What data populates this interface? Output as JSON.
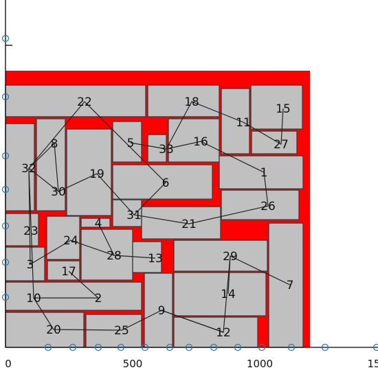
{
  "colors": {
    "region": "#ff0000",
    "box_fill": "#c0c0c0",
    "box_stroke": "#3a3a3a",
    "marker": "#1f77b4"
  },
  "axis": {
    "x_ticks": [
      "0",
      "500",
      "1000",
      "15"
    ]
  },
  "labels": [
    {
      "id": "1",
      "text": "1"
    },
    {
      "id": "2",
      "text": "2"
    },
    {
      "id": "3",
      "text": "3"
    },
    {
      "id": "4",
      "text": "4"
    },
    {
      "id": "5",
      "text": "5"
    },
    {
      "id": "6",
      "text": "6"
    },
    {
      "id": "7",
      "text": "7"
    },
    {
      "id": "8",
      "text": "8"
    },
    {
      "id": "9",
      "text": "9"
    },
    {
      "id": "10",
      "text": "10"
    },
    {
      "id": "11",
      "text": "11"
    },
    {
      "id": "12",
      "text": "12"
    },
    {
      "id": "13",
      "text": "13"
    },
    {
      "id": "14",
      "text": "14"
    },
    {
      "id": "15",
      "text": "15"
    },
    {
      "id": "16",
      "text": "16"
    },
    {
      "id": "17",
      "text": "17"
    },
    {
      "id": "18",
      "text": "18"
    },
    {
      "id": "19",
      "text": "19"
    },
    {
      "id": "20",
      "text": "20"
    },
    {
      "id": "21",
      "text": "21"
    },
    {
      "id": "22",
      "text": "22"
    },
    {
      "id": "23",
      "text": "23"
    },
    {
      "id": "24",
      "text": "24"
    },
    {
      "id": "25",
      "text": "25"
    },
    {
      "id": "26",
      "text": "26"
    },
    {
      "id": "27",
      "text": "27"
    },
    {
      "id": "28",
      "text": "28"
    },
    {
      "id": "29",
      "text": "29"
    },
    {
      "id": "30",
      "text": "30"
    },
    {
      "id": "31",
      "text": "31"
    },
    {
      "id": "32",
      "text": "32"
    },
    {
      "id": "33",
      "text": "33"
    }
  ],
  "path_order": [
    "22",
    "32",
    "30",
    "19",
    "31",
    "21",
    "26",
    "1",
    "16",
    "33",
    "18",
    "11",
    "27",
    "15"
  ],
  "path_order_2": [
    "32",
    "3",
    "24",
    "28",
    "13"
  ],
  "path_order_3": [
    "32",
    "10",
    "2",
    "17"
  ],
  "path_order_4": [
    "10",
    "20",
    "25",
    "9",
    "12",
    "29",
    "7"
  ],
  "path_order_5": [
    "4",
    "28"
  ],
  "path_order_6": [
    "8",
    "30"
  ],
  "path_order_7": [
    "22",
    "6",
    "31"
  ],
  "path_order_8": [
    "32",
    "8"
  ],
  "path_order_9": [
    "29",
    "14"
  ],
  "path_order_10": [
    "33",
    "5"
  ],
  "path_order_11": [
    "9",
    "12"
  ]
}
